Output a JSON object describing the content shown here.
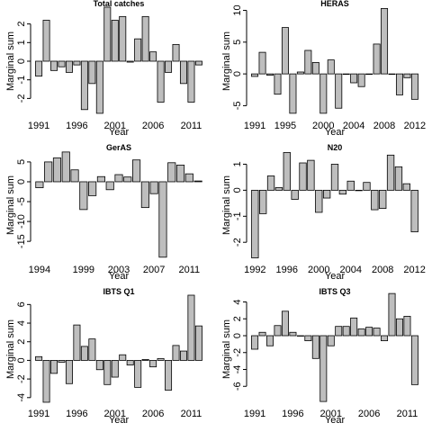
{
  "chart_data": [
    {
      "type": "bar",
      "title": "Total catches",
      "xlabel": "Year",
      "ylabel": "Marginal sum",
      "color": "#bebebe",
      "x": [
        1991,
        1992,
        1993,
        1994,
        1995,
        1996,
        1997,
        1998,
        1999,
        2000,
        2001,
        2002,
        2003,
        2004,
        2005,
        2006,
        2007,
        2008,
        2009,
        2010,
        2011,
        2012
      ],
      "values": [
        -0.8,
        2.2,
        -0.5,
        -0.3,
        -0.6,
        -0.2,
        -2.6,
        -1.2,
        -2.8,
        2.9,
        2.2,
        2.4,
        -0.05,
        1.2,
        2.4,
        0.5,
        -2.2,
        -0.6,
        0.9,
        -1.2,
        -2.2,
        -0.2
      ],
      "xlim": [
        1990.4,
        2012.6
      ],
      "xticks": [
        1991,
        1996,
        2001,
        2006,
        2011
      ],
      "ylim": [
        -2.9,
        2.9
      ],
      "yticks": [
        -2,
        -1,
        0,
        1,
        2
      ]
    },
    {
      "type": "bar",
      "title": "HERAS",
      "xlabel": "Year",
      "ylabel": "Marginal sum",
      "color": "#bebebe",
      "x": [
        1991,
        1992,
        1993,
        1994,
        1995,
        1996,
        1997,
        1998,
        1999,
        2000,
        2001,
        2002,
        2003,
        2004,
        2005,
        2006,
        2007,
        2008,
        2009,
        2010,
        2011,
        2012
      ],
      "values": [
        -0.4,
        3.4,
        -0.2,
        -3.2,
        7.3,
        -6.2,
        0.3,
        3.7,
        1.8,
        -6.2,
        2.2,
        -5.4,
        0,
        -1.4,
        -2.0,
        0,
        4.7,
        10.3,
        0,
        -3.3,
        -0.6,
        -4.0
      ],
      "xlim": [
        1990.4,
        2012.6
      ],
      "xticks": [
        1991,
        1995,
        2000,
        2004,
        2008,
        2012
      ],
      "ylim": [
        -6.5,
        10.5
      ],
      "yticks": [
        -5,
        0,
        5,
        10
      ]
    },
    {
      "type": "bar",
      "title": "GerAS",
      "xlabel": "Year",
      "ylabel": "Marginal sum",
      "color": "#bebebe",
      "x": [
        1994,
        1995,
        1996,
        1997,
        1998,
        1999,
        2000,
        2001,
        2002,
        2003,
        2004,
        2005,
        2006,
        2007,
        2008,
        2009,
        2010,
        2011,
        2012
      ],
      "values": [
        -1.5,
        5,
        6,
        7.5,
        3,
        -7,
        -3.5,
        1.3,
        -2,
        1.8,
        1.2,
        5.5,
        -6.5,
        -3,
        -19,
        4.8,
        4.2,
        2,
        0.2
      ],
      "xlim": [
        1993.4,
        2012.6
      ],
      "xticks": [
        1994,
        1999,
        2003,
        2007,
        2011
      ],
      "ylim": [
        -19.5,
        7.7
      ],
      "yticks": [
        -15,
        -10,
        -5,
        0,
        5
      ]
    },
    {
      "type": "bar",
      "title": "N20",
      "xlabel": "Year",
      "ylabel": "Marginal sum",
      "color": "#bebebe",
      "x": [
        1992,
        1993,
        1994,
        1995,
        1996,
        1997,
        1998,
        1999,
        2000,
        2001,
        2002,
        2003,
        2004,
        2005,
        2006,
        2007,
        2008,
        2009,
        2010,
        2011,
        2012
      ],
      "values": [
        -2.6,
        -0.9,
        0.55,
        0.1,
        1.45,
        -0.35,
        1.05,
        1.15,
        -0.85,
        -0.3,
        1.0,
        -0.15,
        0.35,
        0,
        0.3,
        -0.75,
        -0.7,
        1.35,
        0.9,
        0.25,
        -1.6
      ],
      "xlim": [
        1991.4,
        2012.6
      ],
      "xticks": [
        1992,
        1996,
        2000,
        2004,
        2008,
        2012
      ],
      "ylim": [
        -2.65,
        1.5
      ],
      "yticks": [
        -2,
        -1,
        0,
        1
      ]
    },
    {
      "type": "bar",
      "title": "IBTS Q1",
      "xlabel": "Year",
      "ylabel": "Marginal sum",
      "color": "#bebebe",
      "x": [
        1991,
        1992,
        1993,
        1994,
        1995,
        1996,
        1997,
        1998,
        1999,
        2000,
        2001,
        2002,
        2003,
        2004,
        2005,
        2006,
        2007,
        2008,
        2009,
        2010,
        2011,
        2012
      ],
      "values": [
        0.4,
        -4.5,
        -1.4,
        -0.2,
        -2.5,
        3.8,
        1.5,
        2.3,
        -1.0,
        -2.6,
        -1.8,
        0.6,
        -0.5,
        -2.9,
        0.1,
        -0.7,
        0.2,
        -3.2,
        1.6,
        1.0,
        7.0,
        3.7
      ],
      "xlim": [
        1990.4,
        2012.6
      ],
      "xticks": [
        1991,
        1996,
        2001,
        2006,
        2011
      ],
      "ylim": [
        -4.6,
        7.0
      ],
      "yticks": [
        -4,
        -2,
        0,
        2,
        4,
        6
      ]
    },
    {
      "type": "bar",
      "title": "IBTS Q3",
      "xlabel": "Year",
      "ylabel": "Marginal sum",
      "color": "#bebebe",
      "x": [
        1991,
        1992,
        1993,
        1994,
        1995,
        1996,
        1997,
        1998,
        1999,
        2000,
        2001,
        2002,
        2003,
        2004,
        2005,
        2006,
        2007,
        2008,
        2009,
        2010,
        2011,
        2012
      ],
      "values": [
        -1.6,
        0.4,
        -1.2,
        1.2,
        2.9,
        0.4,
        0,
        -0.6,
        -2.7,
        -7.8,
        -1.2,
        1.1,
        1.1,
        2.1,
        0.8,
        1.0,
        0.9,
        -0.6,
        5.0,
        2.0,
        2.3,
        -5.8
      ],
      "xlim": [
        1990.4,
        2012.6
      ],
      "xticks": [
        1991,
        1996,
        2001,
        2006,
        2011
      ],
      "ylim": [
        -8,
        4.8
      ],
      "yticks": [
        -6,
        -4,
        -2,
        0,
        2,
        4
      ]
    }
  ]
}
